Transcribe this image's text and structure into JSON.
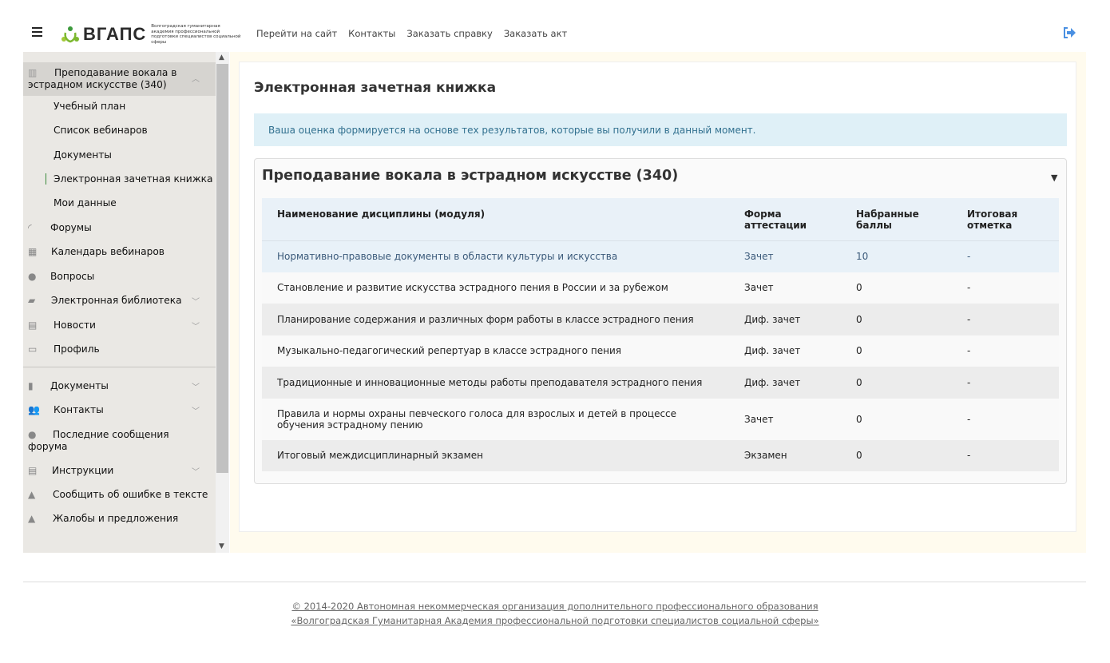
{
  "header": {
    "logo_text": "ВГАПС",
    "logo_subtitle": "Волгоградская гуманитарная академия профессиональной подготовки специалистов социальной сферы",
    "nav": [
      "Перейти на сайт",
      "Контакты",
      "Заказать справку",
      "Заказать акт"
    ]
  },
  "sidebar": {
    "course": {
      "label": "Преподавание вокала в эстрадном искусстве (340)",
      "icon": "book-icon",
      "expanded": true
    },
    "sub": [
      "Учебный план",
      "Список вебинаров",
      "Документы",
      "Электронная зачетная книжка",
      "Мои данные"
    ],
    "active_sub": "Электронная зачетная книжка",
    "items": [
      {
        "label": "Форумы",
        "icon": "rss-icon"
      },
      {
        "label": "Календарь вебинаров",
        "icon": "calendar-icon"
      },
      {
        "label": "Вопросы",
        "icon": "question-icon"
      },
      {
        "label": "Электронная библиотека",
        "icon": "book-icon",
        "chevron": true
      },
      {
        "label": "Новости",
        "icon": "newspaper-icon",
        "chevron": true
      },
      {
        "label": "Профиль",
        "icon": "id-card-icon"
      },
      {
        "label": "Документы",
        "icon": "file-icon",
        "chevron": true
      },
      {
        "label": "Контакты",
        "icon": "users-icon",
        "chevron": true
      },
      {
        "label": "Последние сообщения форума",
        "icon": "comments-icon"
      },
      {
        "label": "Инструкции",
        "icon": "list-icon",
        "chevron": true
      },
      {
        "label": "Сообщить об ошибке в тексте",
        "icon": "warning-icon"
      },
      {
        "label": "Жалобы и предложения",
        "icon": "warning-icon"
      }
    ]
  },
  "main": {
    "title": "Электронная зачетная книжка",
    "alert": "Ваша оценка формируется на основе тех результатов, которые вы получили в данный момент.",
    "panel_title": "Преподавание вокала в эстрадном искусстве (340)",
    "columns": [
      "Наименование дисциплины (модуля)",
      "Форма аттестации",
      "Набранные баллы",
      "Итоговая отметка"
    ],
    "rows": [
      [
        "Нормативно-правовые документы в области культуры и искусства",
        "Зачет",
        "10",
        "-"
      ],
      [
        "Становление и развитие искусства эстрадного пения в России и за рубежом",
        "Зачет",
        "0",
        "-"
      ],
      [
        "Планирование содержания и различных форм работы в классе эстрадного пения",
        "Диф. зачет",
        "0",
        "-"
      ],
      [
        "Музыкально-педагогический репертуар в классе эстрадного пения",
        "Диф. зачет",
        "0",
        "-"
      ],
      [
        "Традиционные и инновационные методы работы преподавателя эстрадного пения",
        "Диф. зачет",
        "0",
        "-"
      ],
      [
        "Правила и нормы охраны певческого голоса для взрослых и детей в процессе обучения эстрадному пению",
        "Зачет",
        "0",
        "-"
      ],
      [
        "Итоговый междисциплинарный экзамен",
        "Экзамен",
        "0",
        "-"
      ]
    ]
  },
  "footer": {
    "line1": "© 2014-2020 Автономная некоммерческая  организация дополнительного профессионального образования",
    "line2": "«Волгоградская Гуманитарная Академия профессиональной подготовки специалистов социальной сферы»"
  },
  "colors": {
    "accent": "#4a90e2",
    "logo_green": "#7cb82f",
    "alert_bg": "#dff0f7",
    "main_bg": "#fffbee",
    "sidebar_bg": "#eae8e4"
  }
}
